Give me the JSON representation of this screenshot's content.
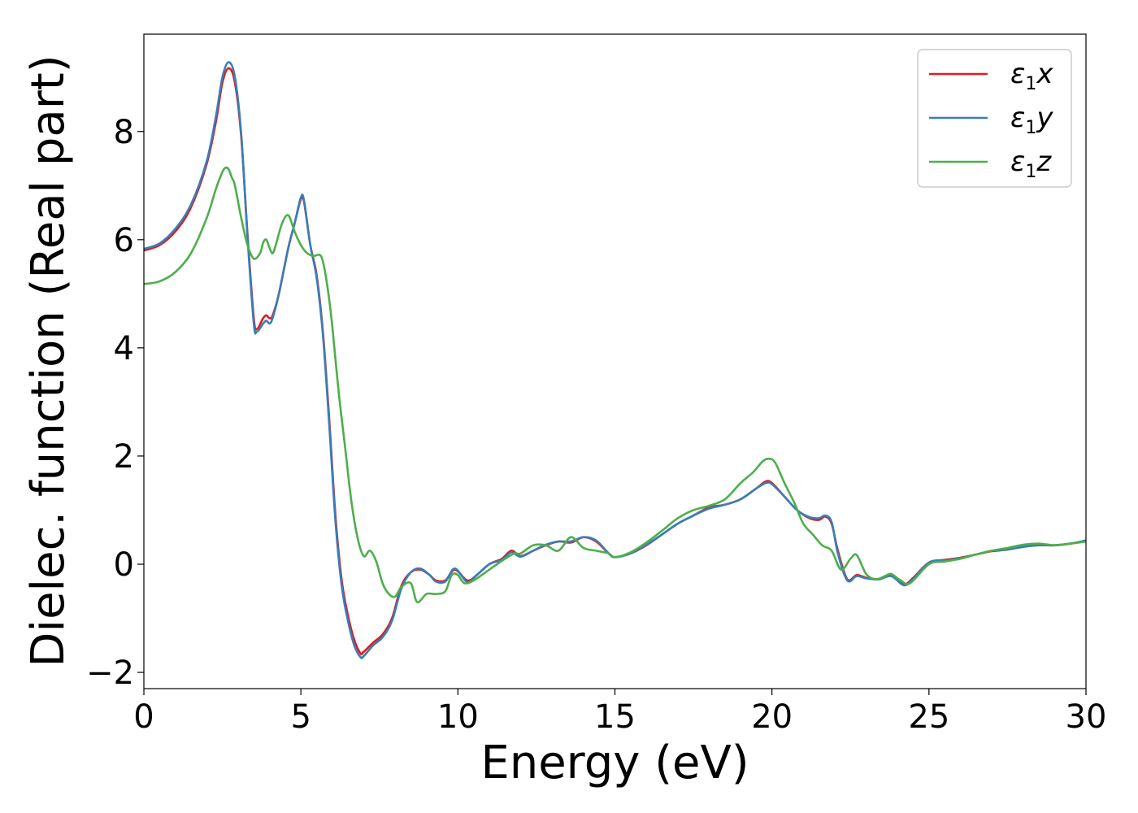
{
  "chart_data": {
    "type": "line",
    "title": "",
    "xlabel": "Energy (eV)",
    "ylabel": "Dielec. function (Real part)",
    "xlim": [
      0,
      30
    ],
    "ylim": [
      -2.3,
      9.8
    ],
    "xticks": [
      0,
      5,
      10,
      15,
      20,
      25,
      30
    ],
    "xtick_labels": [
      "0",
      "5",
      "10",
      "15",
      "20",
      "25",
      "30"
    ],
    "yticks": [
      -2,
      0,
      2,
      4,
      6,
      8
    ],
    "ytick_labels": [
      "−2",
      "0",
      "2",
      "4",
      "6",
      "8"
    ],
    "grid": false,
    "legend_position": "top-right",
    "series": [
      {
        "name": "x",
        "legend_base": "ε",
        "legend_sub": "1",
        "legend_tail": "x",
        "color": "#e31a1c",
        "x": [
          0,
          0.5,
          1,
          1.5,
          2,
          2.3,
          2.5,
          2.7,
          2.9,
          3.1,
          3.3,
          3.5,
          3.6,
          3.8,
          3.9,
          4.0,
          4.1,
          4.3,
          4.6,
          4.8,
          5.0,
          5.1,
          5.3,
          5.5,
          5.7,
          5.9,
          6.1,
          6.3,
          6.5,
          6.7,
          6.9,
          7.0,
          7.3,
          7.6,
          7.9,
          8.2,
          8.5,
          8.8,
          9.1,
          9.3,
          9.6,
          9.9,
          10.3,
          10.6,
          11.0,
          11.4,
          11.7,
          12.0,
          12.4,
          12.8,
          13.2,
          13.6,
          14.0,
          14.4,
          14.8,
          15.0,
          15.5,
          16.0,
          16.5,
          17.0,
          17.5,
          18.0,
          18.5,
          19.0,
          19.5,
          19.8,
          20.0,
          20.4,
          20.8,
          21.2,
          21.5,
          21.7,
          21.9,
          22.1,
          22.4,
          22.7,
          23.0,
          23.4,
          23.8,
          24.2,
          24.5,
          25.0,
          25.5,
          26.0,
          26.5,
          27.0,
          27.5,
          28.0,
          28.5,
          29.0,
          29.5,
          30.0
        ],
        "y": [
          5.8,
          5.9,
          6.15,
          6.6,
          7.4,
          8.2,
          8.9,
          9.17,
          8.9,
          7.9,
          6.1,
          4.55,
          4.35,
          4.55,
          4.6,
          4.55,
          4.6,
          5.0,
          5.85,
          6.3,
          6.75,
          6.7,
          5.9,
          5.35,
          4.3,
          2.7,
          0.9,
          -0.3,
          -0.95,
          -1.4,
          -1.65,
          -1.62,
          -1.45,
          -1.3,
          -1.0,
          -0.4,
          -0.15,
          -0.1,
          -0.2,
          -0.3,
          -0.3,
          -0.1,
          -0.3,
          -0.2,
          0.0,
          0.1,
          0.25,
          0.15,
          0.25,
          0.35,
          0.42,
          0.4,
          0.5,
          0.42,
          0.2,
          0.13,
          0.2,
          0.35,
          0.55,
          0.75,
          0.9,
          1.05,
          1.1,
          1.2,
          1.4,
          1.53,
          1.5,
          1.25,
          1.0,
          0.85,
          0.82,
          0.88,
          0.75,
          0.25,
          -0.28,
          -0.2,
          -0.25,
          -0.28,
          -0.2,
          -0.37,
          -0.25,
          0.03,
          0.08,
          0.12,
          0.18,
          0.24,
          0.27,
          0.33,
          0.35,
          0.35,
          0.38,
          0.43
        ]
      },
      {
        "name": "y",
        "legend_base": "ε",
        "legend_sub": "1",
        "legend_tail": "y",
        "color": "#377eb8",
        "x": [
          0,
          0.5,
          1,
          1.5,
          2,
          2.3,
          2.5,
          2.7,
          2.9,
          3.1,
          3.3,
          3.5,
          3.6,
          3.8,
          3.9,
          4.0,
          4.1,
          4.3,
          4.6,
          4.8,
          5.0,
          5.1,
          5.3,
          5.5,
          5.7,
          5.9,
          6.1,
          6.3,
          6.5,
          6.7,
          6.9,
          7.0,
          7.3,
          7.6,
          7.9,
          8.2,
          8.5,
          8.8,
          9.1,
          9.3,
          9.6,
          9.9,
          10.3,
          10.6,
          11.0,
          11.4,
          11.7,
          12.0,
          12.4,
          12.8,
          13.2,
          13.6,
          14.0,
          14.4,
          14.8,
          15.0,
          15.5,
          16.0,
          16.5,
          17.0,
          17.5,
          18.0,
          18.5,
          19.0,
          19.5,
          19.8,
          20.0,
          20.4,
          20.8,
          21.2,
          21.5,
          21.7,
          21.9,
          22.1,
          22.4,
          22.7,
          23.0,
          23.4,
          23.8,
          24.2,
          24.5,
          25.0,
          25.5,
          26.0,
          26.5,
          27.0,
          27.5,
          28.0,
          28.5,
          29.0,
          29.5,
          30.0
        ],
        "y": [
          5.83,
          5.93,
          6.2,
          6.65,
          7.45,
          8.3,
          9.0,
          9.28,
          9.0,
          7.95,
          6.05,
          4.45,
          4.3,
          4.45,
          4.5,
          4.45,
          4.55,
          5.0,
          5.85,
          6.3,
          6.78,
          6.72,
          5.9,
          5.3,
          4.25,
          2.6,
          0.8,
          -0.4,
          -1.05,
          -1.5,
          -1.72,
          -1.7,
          -1.5,
          -1.35,
          -1.05,
          -0.45,
          -0.15,
          -0.08,
          -0.2,
          -0.32,
          -0.32,
          -0.08,
          -0.33,
          -0.2,
          0.0,
          0.08,
          0.22,
          0.14,
          0.25,
          0.36,
          0.42,
          0.42,
          0.5,
          0.44,
          0.2,
          0.13,
          0.2,
          0.36,
          0.55,
          0.75,
          0.9,
          1.03,
          1.1,
          1.2,
          1.4,
          1.5,
          1.48,
          1.25,
          1.0,
          0.87,
          0.85,
          0.9,
          0.78,
          0.2,
          -0.3,
          -0.22,
          -0.26,
          -0.28,
          -0.22,
          -0.39,
          -0.27,
          0.03,
          0.07,
          0.11,
          0.18,
          0.25,
          0.27,
          0.32,
          0.35,
          0.35,
          0.38,
          0.44
        ]
      },
      {
        "name": "z",
        "legend_base": "ε",
        "legend_sub": "1",
        "legend_tail": "z",
        "color": "#4daf4a",
        "x": [
          0,
          0.5,
          1,
          1.5,
          2,
          2.3,
          2.5,
          2.6,
          2.7,
          2.8,
          2.9,
          3.1,
          3.3,
          3.5,
          3.7,
          3.8,
          3.9,
          4.0,
          4.1,
          4.2,
          4.4,
          4.6,
          4.8,
          5.0,
          5.2,
          5.4,
          5.6,
          5.7,
          5.8,
          5.9,
          6.0,
          6.2,
          6.4,
          6.6,
          6.8,
          7.0,
          7.2,
          7.4,
          7.6,
          7.8,
          8.0,
          8.2,
          8.5,
          8.7,
          9.0,
          9.3,
          9.6,
          9.8,
          10.0,
          10.2,
          10.5,
          11.0,
          11.5,
          11.8,
          12.0,
          12.4,
          12.8,
          13.2,
          13.6,
          14.0,
          14.4,
          14.8,
          15.0,
          15.5,
          16.0,
          16.5,
          17.0,
          17.5,
          18.0,
          18.5,
          19.0,
          19.4,
          19.7,
          19.9,
          20.1,
          20.4,
          20.7,
          21.0,
          21.3,
          21.6,
          21.9,
          22.2,
          22.5,
          22.7,
          23.0,
          23.3,
          23.6,
          23.8,
          24.1,
          24.4,
          25.0,
          25.5,
          26.0,
          26.5,
          27.0,
          27.5,
          28.0,
          28.5,
          29.0,
          29.5,
          30.0
        ],
        "y": [
          5.18,
          5.23,
          5.4,
          5.75,
          6.4,
          6.95,
          7.25,
          7.33,
          7.3,
          7.15,
          7.0,
          6.4,
          5.9,
          5.65,
          5.75,
          5.95,
          6.0,
          5.85,
          5.75,
          5.9,
          6.3,
          6.45,
          6.15,
          5.9,
          5.75,
          5.7,
          5.72,
          5.6,
          5.3,
          4.9,
          4.4,
          3.2,
          2.2,
          1.2,
          0.5,
          0.15,
          0.25,
          0.05,
          -0.35,
          -0.55,
          -0.6,
          -0.42,
          -0.35,
          -0.7,
          -0.55,
          -0.55,
          -0.5,
          -0.2,
          -0.2,
          -0.35,
          -0.3,
          -0.1,
          0.1,
          0.2,
          0.2,
          0.35,
          0.35,
          0.25,
          0.5,
          0.3,
          0.25,
          0.2,
          0.13,
          0.22,
          0.4,
          0.62,
          0.85,
          1.0,
          1.08,
          1.2,
          1.5,
          1.7,
          1.9,
          1.95,
          1.88,
          1.5,
          1.15,
          0.75,
          0.55,
          0.35,
          0.25,
          -0.1,
          0.1,
          0.17,
          -0.18,
          -0.28,
          -0.22,
          -0.18,
          -0.3,
          -0.35,
          0.0,
          0.05,
          0.1,
          0.18,
          0.25,
          0.3,
          0.36,
          0.38,
          0.35,
          0.38,
          0.42
        ]
      }
    ]
  }
}
